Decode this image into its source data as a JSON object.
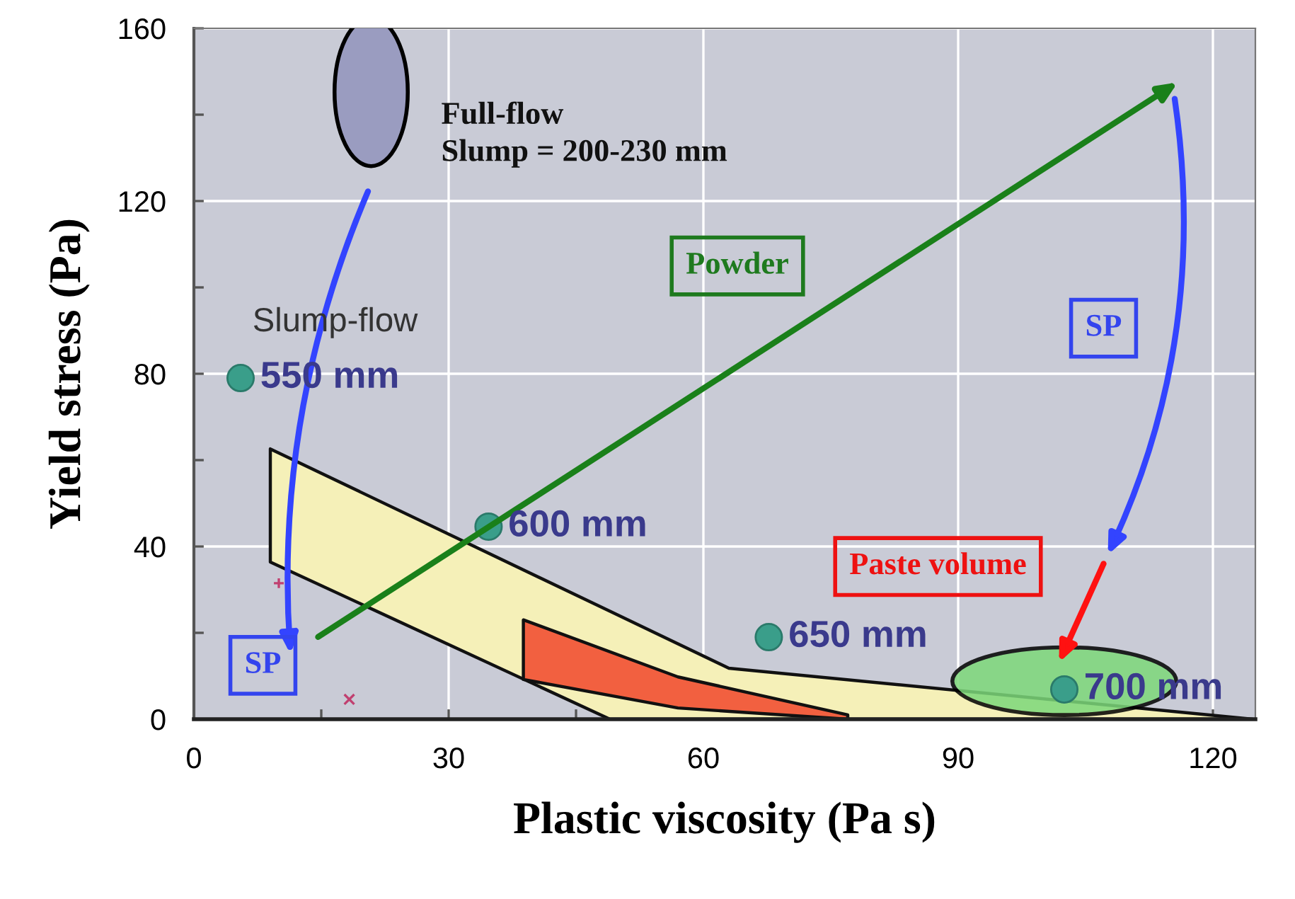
{
  "chart_data": {
    "type": "scatter",
    "xlabel": "Plastic viscosity (Pa s)",
    "ylabel": "Yield stress (Pa)",
    "xlim": [
      0,
      125
    ],
    "xticks": [
      0,
      {
        "value": 15,
        "label": null
      },
      30,
      {
        "value": 45,
        "label": null
      },
      60,
      {
        "value": 75,
        "label": null
      },
      90,
      {
        "value": 105,
        "label": null
      },
      120
    ],
    "ylim": [
      0,
      160
    ],
    "yticks": [
      0,
      {
        "value": 20,
        "label": null
      },
      40,
      {
        "value": 60,
        "label": null
      },
      80,
      {
        "value": 100,
        "label": null
      },
      120,
      {
        "value": 140,
        "label": null
      },
      160
    ],
    "grid": true,
    "series": [
      {
        "type": "area",
        "color": "#f5f0b8",
        "x": [
          9,
          49,
          63,
          124.7
        ],
        "values": [
          null,
          null,
          null,
          null
        ],
        "upper": [
          62.6,
          25,
          11.8,
          0
        ],
        "lower": [
          36.4,
          0,
          0,
          0
        ]
      },
      {
        "type": "area",
        "color": "#f26040",
        "x": [
          38.8,
          57,
          77
        ],
        "values": [
          null,
          null,
          null
        ],
        "upper": [
          23,
          9.8,
          1
        ],
        "lower": [
          9.2,
          2.6,
          0
        ]
      },
      {
        "color": "#3a9e8a",
        "marker": "circle",
        "x": [
          5.5,
          34.7,
          67.7,
          102.5
        ],
        "values": [
          79,
          44.6,
          19,
          6.9
        ]
      },
      {
        "color": "#c04070",
        "marker": "plus",
        "x": [
          10
        ],
        "values": [
          31.5
        ]
      },
      {
        "color": "#c04070",
        "marker": "cross",
        "x": [
          18.3
        ],
        "values": [
          4.6
        ]
      }
    ],
    "annotations": [
      "Full-flow\nSlump = 200-230 mm",
      "Slump-flow",
      "Powder",
      "SP",
      "SP",
      "Paste volume",
      {
        "text": "550 mm",
        "x": 5.5,
        "y": 79
      },
      {
        "text": "600 mm",
        "x": 34.7,
        "y": 44.6
      },
      {
        "text": "650 mm",
        "x": 67.7,
        "y": 19
      },
      {
        "text": "700 mm",
        "x": 102.5,
        "y": 6.9
      }
    ]
  }
}
